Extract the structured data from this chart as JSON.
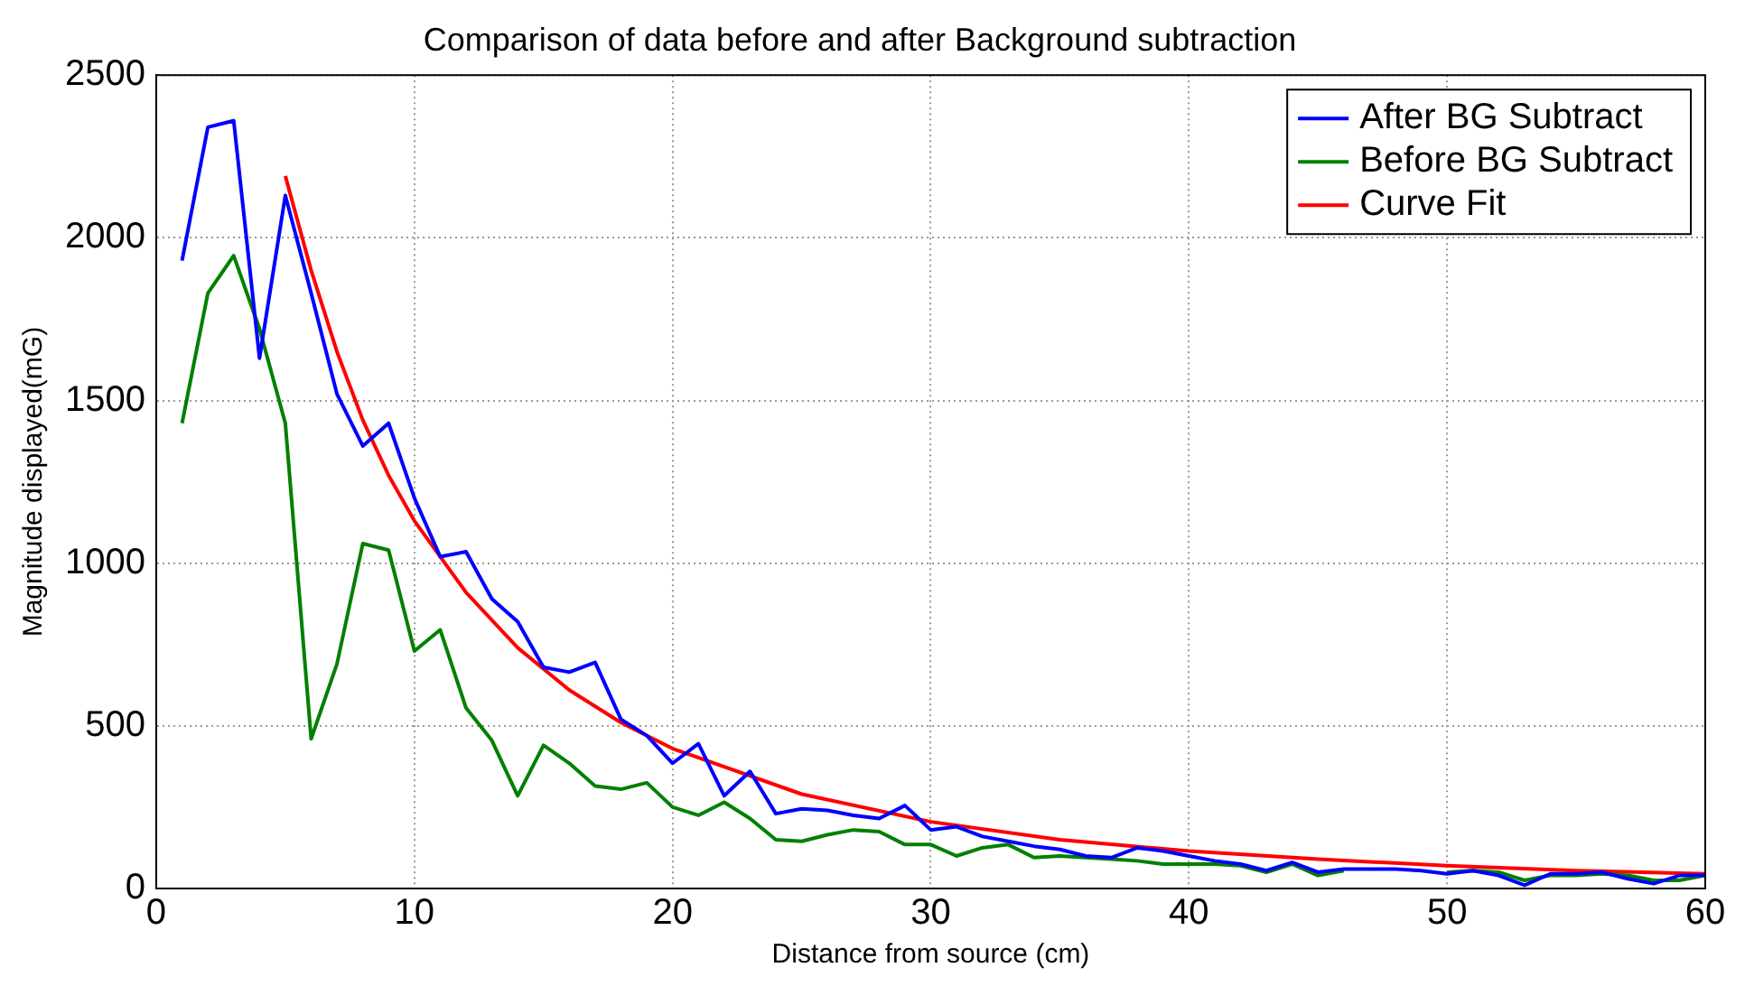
{
  "chart_data": {
    "type": "line",
    "title": "Comparison of data before and after Background subtraction",
    "xlabel": "Distance from source (cm)",
    "ylabel": "Magnitude displayed(mG)",
    "x": [
      1,
      2,
      3,
      4,
      5,
      6,
      7,
      8,
      9,
      10,
      11,
      12,
      13,
      14,
      15,
      16,
      17,
      18,
      19,
      20,
      21,
      22,
      23,
      24,
      25,
      26,
      27,
      28,
      29,
      30,
      31,
      32,
      33,
      34,
      35,
      36,
      37,
      38,
      39,
      40,
      41,
      42,
      43,
      44,
      45,
      46,
      47,
      48,
      49,
      50,
      51,
      52,
      53,
      54,
      55,
      56,
      57,
      58,
      59,
      60
    ],
    "series": [
      {
        "name": "After BG Subtract",
        "color": "#0000ff",
        "values": [
          1930,
          2340,
          2360,
          1630,
          2130,
          1830,
          1520,
          1360,
          1430,
          1200,
          1020,
          1035,
          890,
          820,
          680,
          665,
          695,
          520,
          470,
          385,
          445,
          285,
          360,
          230,
          245,
          240,
          225,
          215,
          255,
          180,
          190,
          160,
          145,
          130,
          120,
          100,
          95,
          125,
          115,
          100,
          85,
          75,
          55,
          80,
          50,
          60,
          60,
          60,
          55,
          45,
          55,
          40,
          10,
          45,
          45,
          50,
          30,
          15,
          40,
          40
        ]
      },
      {
        "name": "Before BG Subtract",
        "color": "#008000",
        "values": [
          1430,
          1830,
          1945,
          1720,
          1430,
          460,
          690,
          1060,
          1040,
          730,
          795,
          555,
          455,
          285,
          440,
          385,
          315,
          305,
          325,
          250,
          225,
          265,
          215,
          150,
          145,
          165,
          180,
          175,
          135,
          135,
          100,
          125,
          135,
          95,
          100,
          95,
          90,
          85,
          75,
          75,
          75,
          70,
          50,
          75,
          40,
          55,
          null,
          null,
          null,
          50,
          55,
          50,
          25,
          40,
          40,
          45,
          40,
          25,
          25,
          40
        ]
      },
      {
        "name": "Curve Fit",
        "color": "#ff0000",
        "x": [
          5,
          6,
          7,
          8,
          9,
          10,
          12,
          14,
          16,
          18,
          20,
          25,
          30,
          35,
          40,
          45,
          50,
          55,
          60
        ],
        "values": [
          2190,
          1900,
          1650,
          1440,
          1270,
          1130,
          910,
          740,
          610,
          510,
          430,
          290,
          205,
          150,
          115,
          90,
          70,
          55,
          45
        ]
      }
    ],
    "xlim": [
      0,
      60
    ],
    "xticks": [
      0,
      10,
      20,
      30,
      40,
      50,
      60
    ],
    "ylim": [
      0,
      2500
    ],
    "yticks": [
      0,
      500,
      1000,
      1500,
      2000,
      2500
    ],
    "grid": true,
    "legend": "top right",
    "marker": "none",
    "line_style": "solid"
  }
}
